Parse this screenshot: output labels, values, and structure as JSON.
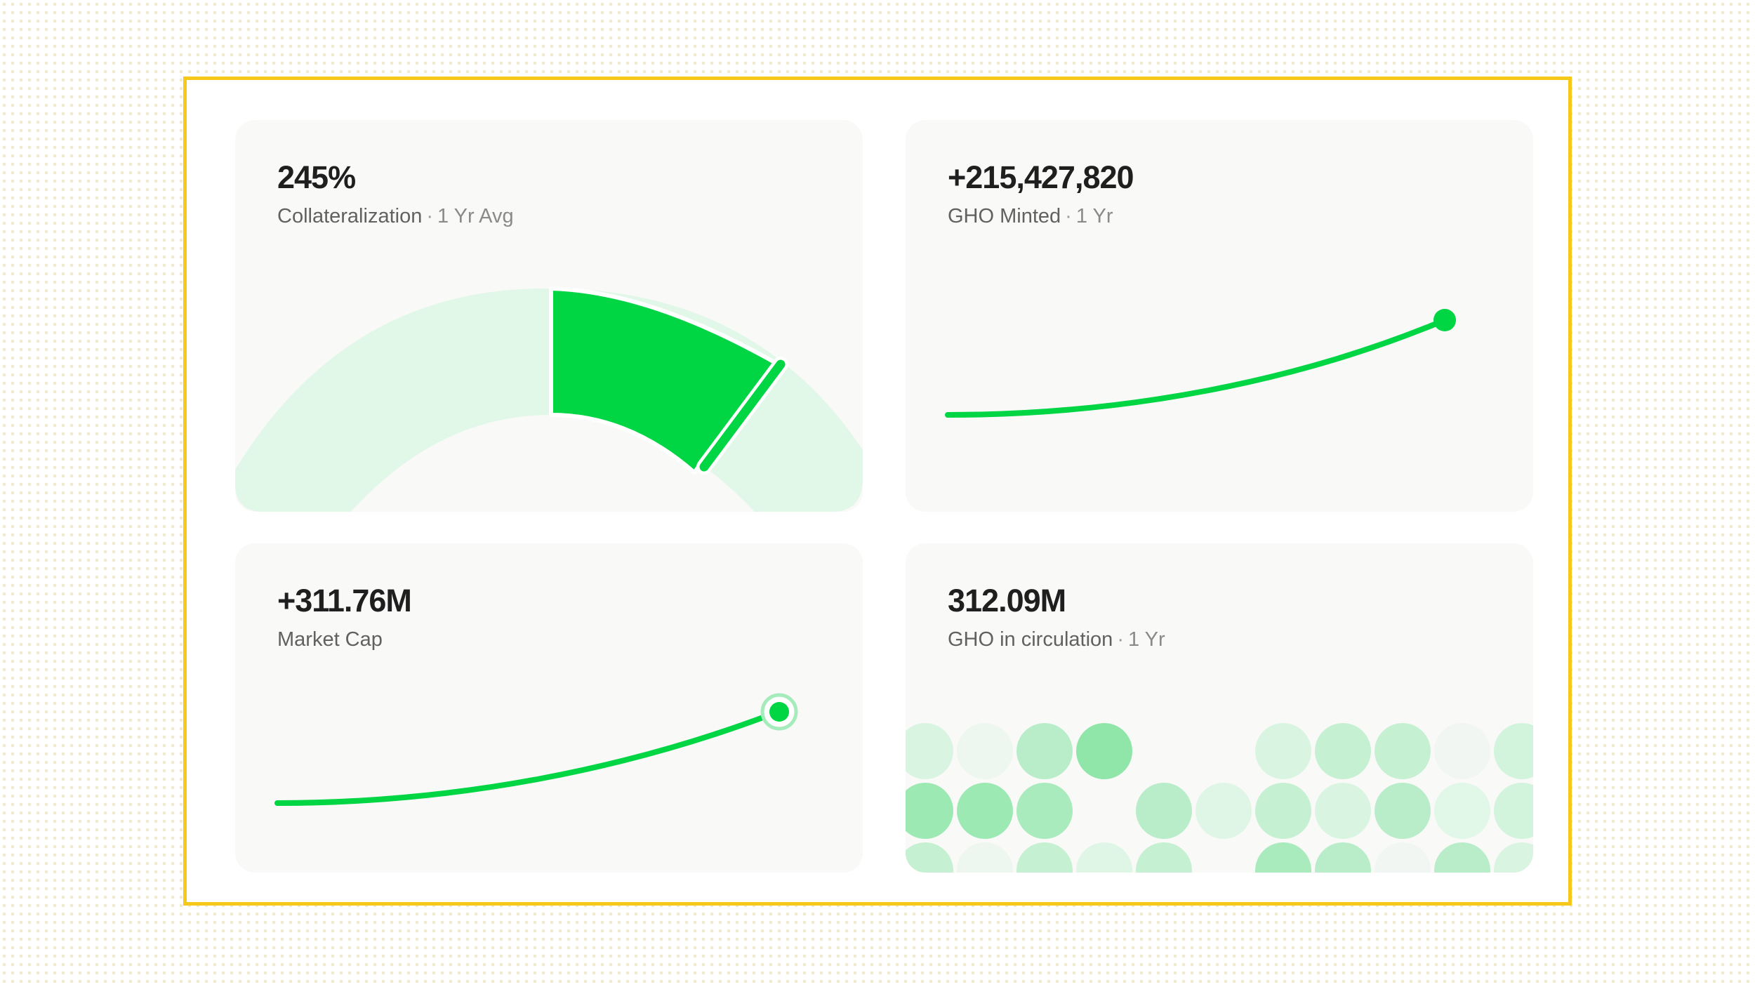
{
  "colors": {
    "accent": "#00d544",
    "accent_light": "#e1f7e8",
    "frame_border": "#f6c819",
    "card_bg": "#f9f9f8"
  },
  "cards": [
    {
      "value": "245%",
      "label": "Collateralization",
      "separator": "·",
      "period": "1 Yr Avg",
      "viz": "gauge"
    },
    {
      "value": "+215,427,820",
      "label": "GHO Minted",
      "separator": "·",
      "period": "1 Yr",
      "viz": "line"
    },
    {
      "value": "+311.76M",
      "label": "Market Cap",
      "viz": "line"
    },
    {
      "value": "312.09M",
      "label": "GHO in circulation",
      "separator": "·",
      "period": "1 Yr",
      "viz": "dot-grid"
    }
  ]
}
